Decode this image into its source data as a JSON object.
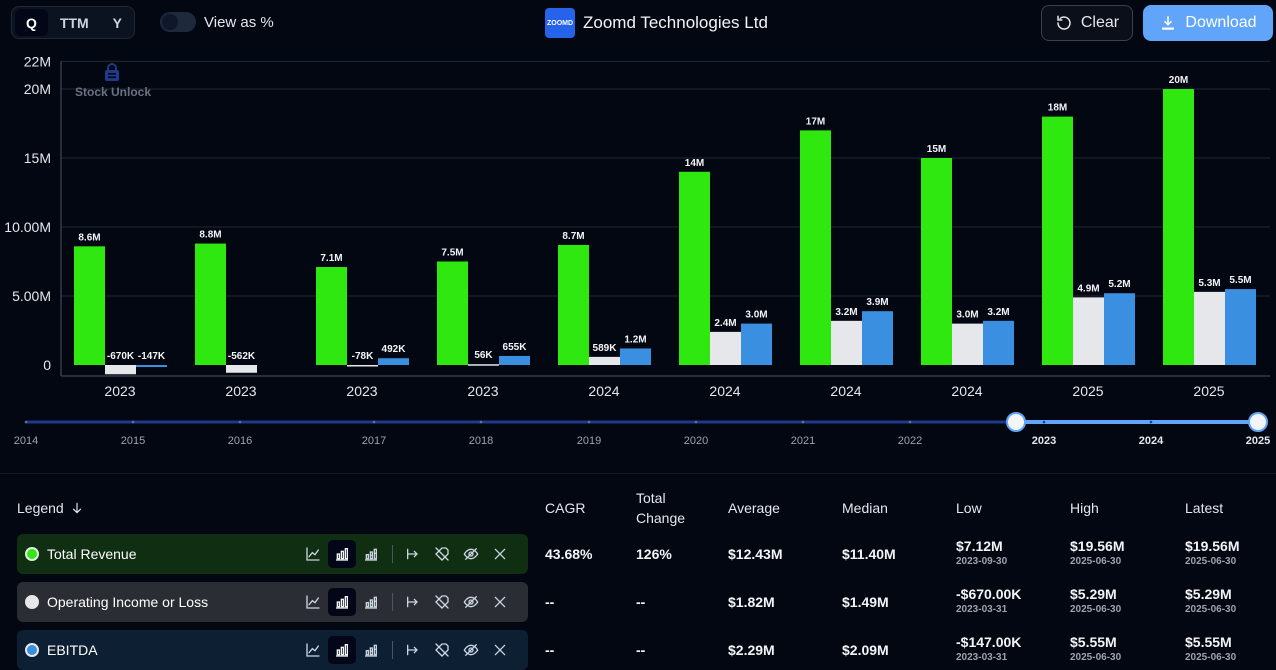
{
  "toolbar": {
    "period_options": [
      "Q",
      "TTM",
      "Y"
    ],
    "view_as_pct_label": "View as %",
    "company_logo_text": "ZOOMD",
    "company_name": "Zoomd Technologies Ltd",
    "clear_label": "Clear",
    "download_label": "Download"
  },
  "watermark": "Stock Unlock",
  "colors": {
    "revenue": "#2ee80f",
    "operating": "#e5e7eb",
    "ebitda": "#3b8fe0",
    "background": "#030712"
  },
  "chart_data": {
    "type": "bar",
    "categories": [
      "2023",
      "2023",
      "2023",
      "2023",
      "2024",
      "2024",
      "2024",
      "2024",
      "2025",
      "2025"
    ],
    "series": [
      {
        "name": "Total Revenue",
        "values": [
          8.6,
          8.8,
          7.1,
          7.5,
          8.7,
          14,
          17,
          15,
          18,
          20
        ],
        "labels": [
          "8.6M",
          "8.8M",
          "7.1M",
          "7.5M",
          "8.7M",
          "14M",
          "17M",
          "15M",
          "18M",
          "20M"
        ]
      },
      {
        "name": "Operating Income or Loss",
        "values": [
          -0.67,
          -0.562,
          -0.078,
          0.056,
          0.589,
          2.4,
          3.2,
          3.0,
          4.9,
          5.3
        ],
        "labels": [
          "-670K",
          "-562K",
          "-78K",
          "56K",
          "589K",
          "2.4M",
          "3.2M",
          "3.0M",
          "4.9M",
          "5.3M"
        ]
      },
      {
        "name": "EBITDA",
        "values": [
          -0.147,
          null,
          0.492,
          0.655,
          1.2,
          3.0,
          3.9,
          3.2,
          5.2,
          5.5
        ],
        "labels": [
          "-147K",
          "",
          "492K",
          "655K",
          "1.2M",
          "3.0M",
          "3.9M",
          "3.2M",
          "5.2M",
          "5.5M"
        ]
      }
    ],
    "yticks": [
      0,
      5,
      10,
      15,
      20,
      22
    ],
    "ytick_labels": [
      "0",
      "5.00M",
      "10.00M",
      "15M",
      "20M",
      "22M"
    ],
    "ylim": [
      -0.8,
      22
    ],
    "units": "USD millions"
  },
  "timeline": {
    "years": [
      "2014",
      "2015",
      "2016",
      "2017",
      "2018",
      "2019",
      "2020",
      "2021",
      "2022",
      "2023",
      "2024",
      "2025"
    ],
    "selected_start": "2023",
    "selected_end": "2025"
  },
  "legend": {
    "header": "Legend",
    "columns": [
      "CAGR",
      "Total Change",
      "Average",
      "Median",
      "Low",
      "High",
      "Latest"
    ],
    "rows": [
      {
        "name": "Total Revenue",
        "cagr": "43.68%",
        "total_change": "126%",
        "average": "$12.43M",
        "median": "$11.40M",
        "low": "$7.12M",
        "low_date": "2023-09-30",
        "high": "$19.56M",
        "high_date": "2025-06-30",
        "latest": "$19.56M",
        "latest_date": "2025-06-30"
      },
      {
        "name": "Operating Income or Loss",
        "cagr": "--",
        "total_change": "--",
        "average": "$1.82M",
        "median": "$1.49M",
        "low": "-$670.00K",
        "low_date": "2023-03-31",
        "high": "$5.29M",
        "high_date": "2025-06-30",
        "latest": "$5.29M",
        "latest_date": "2025-06-30"
      },
      {
        "name": "EBITDA",
        "cagr": "--",
        "total_change": "--",
        "average": "$2.29M",
        "median": "$2.09M",
        "low": "-$147.00K",
        "low_date": "2023-03-31",
        "high": "$5.55M",
        "high_date": "2025-06-30",
        "latest": "$5.55M",
        "latest_date": "2025-06-30"
      }
    ]
  }
}
